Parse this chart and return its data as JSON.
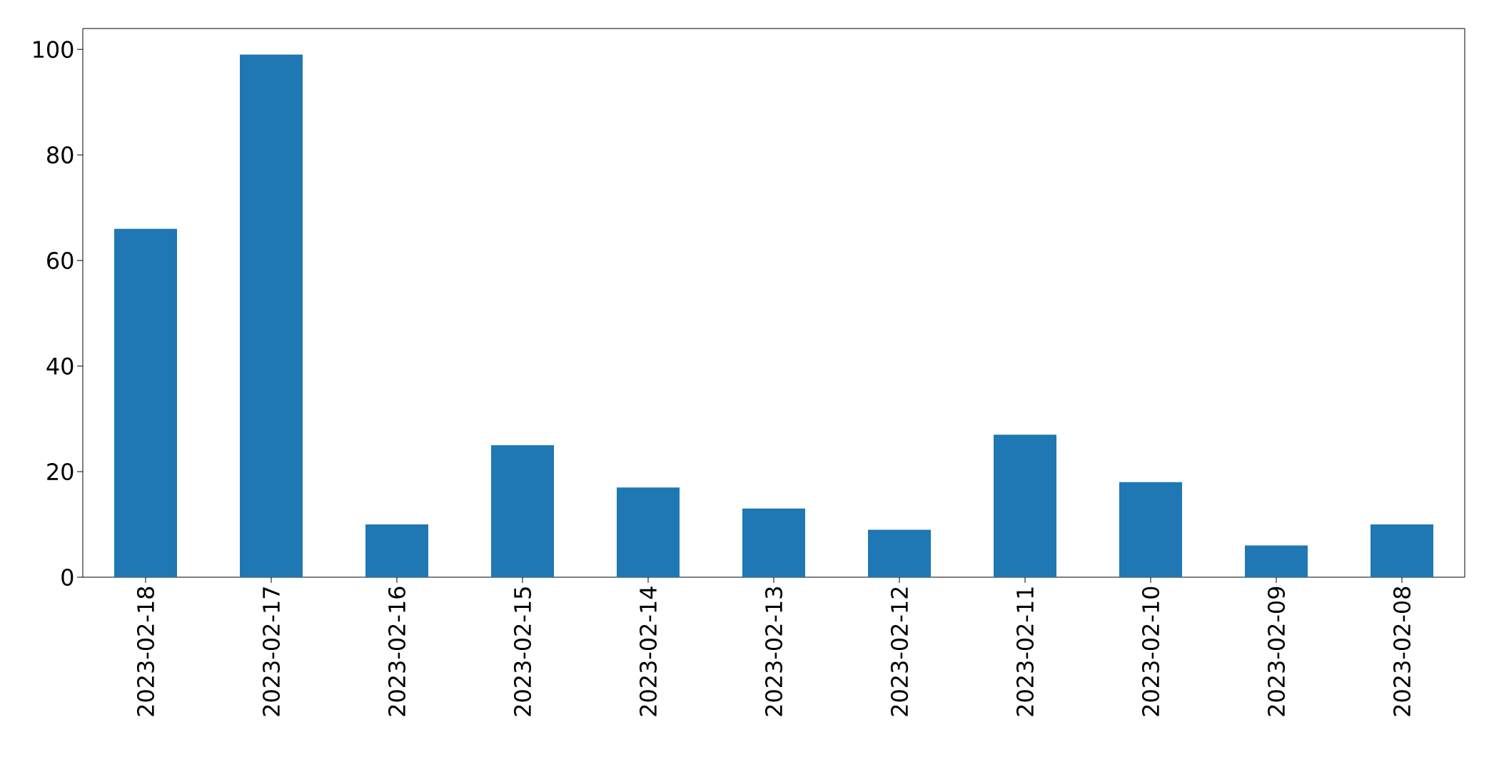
{
  "chart_data": {
    "type": "bar",
    "categories": [
      "2023-02-18",
      "2023-02-17",
      "2023-02-16",
      "2023-02-15",
      "2023-02-14",
      "2023-02-13",
      "2023-02-12",
      "2023-02-11",
      "2023-02-10",
      "2023-02-09",
      "2023-02-08"
    ],
    "values": [
      66,
      99,
      10,
      25,
      17,
      13,
      9,
      27,
      18,
      6,
      10
    ],
    "color": "#1f77b4",
    "ylim": [
      0,
      103.95
    ],
    "yticks": [
      0,
      20,
      40,
      60,
      80,
      100
    ]
  }
}
